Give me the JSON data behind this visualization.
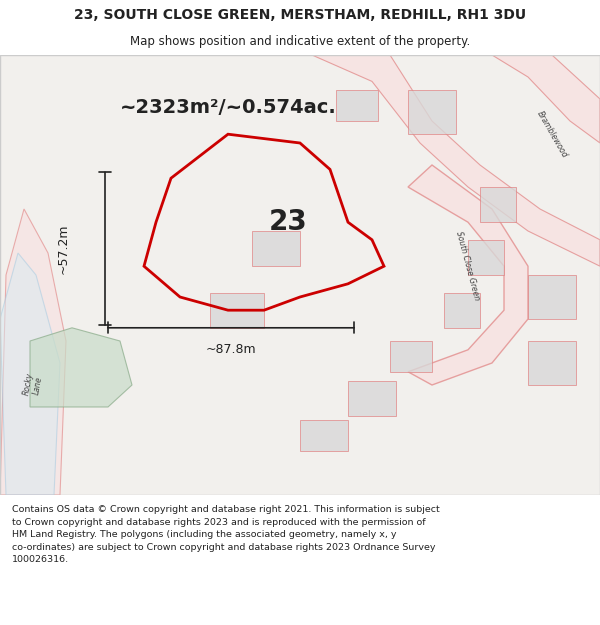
{
  "title_line1": "23, SOUTH CLOSE GREEN, MERSTHAM, REDHILL, RH1 3DU",
  "title_line2": "Map shows position and indicative extent of the property.",
  "area_text": "~2323m²/~0.574ac.",
  "label_number": "23",
  "dim_width": "~87.8m",
  "dim_height": "~57.2m",
  "footer_text": "Contains OS data © Crown copyright and database right 2021. This information is subject to Crown copyright and database rights 2023 and is reproduced with the permission of HM Land Registry. The polygons (including the associated geometry, namely x, y co-ordinates) are subject to Crown copyright and database rights 2023 Ordnance Survey 100026316.",
  "bg_color": "#ffffff",
  "map_bg": "#f5f5f5",
  "road_color": "#f0c0c0",
  "road_fill": "#f8e0e0",
  "property_color": "#cc0000",
  "property_fill": "none",
  "other_road_color": "#e8a0a0",
  "building_color": "#d0d0d0",
  "green_fill": "#c8ddc8",
  "road_line_color": "#e08080",
  "dim_color": "#222222",
  "text_color": "#222222",
  "title_color": "#222222",
  "footer_color": "#222222",
  "blue_road_color": "#add8e6"
}
